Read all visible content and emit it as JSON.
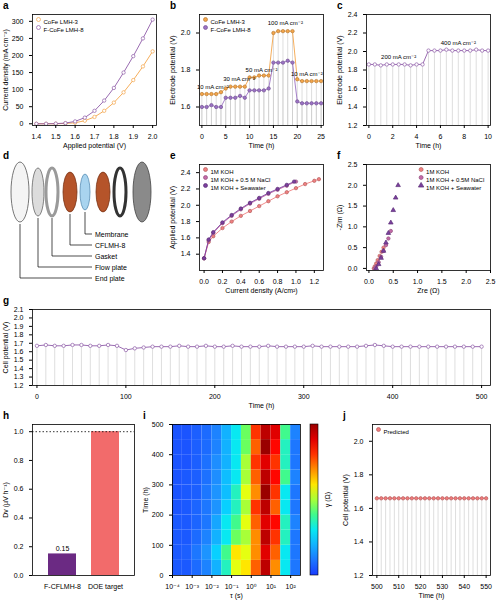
{
  "chart_data": [
    {
      "panel": "a",
      "type": "line",
      "xlabel": "Applied potential (V)",
      "ylabel": "Current density (mA cm⁻²)",
      "x": [
        1.4,
        1.45,
        1.5,
        1.55,
        1.6,
        1.65,
        1.7,
        1.75,
        1.8,
        1.85,
        1.9,
        1.95,
        2.0
      ],
      "xlim": [
        1.38,
        2.02
      ],
      "xticks": [
        1.4,
        1.5,
        1.6,
        1.7,
        1.8,
        1.9,
        {
          "value": 2,
          "label": "2.0"
        }
      ],
      "ylim": [
        -5,
        320
      ],
      "yticks": [
        0,
        50,
        100,
        150,
        200,
        250,
        300
      ],
      "legend": "top-left",
      "series": [
        {
          "name": "CoFe LMH-3",
          "color": "#f4a54a",
          "marker": "open_circle",
          "values": [
            0,
            0,
            0,
            1,
            3,
            9,
            20,
            38,
            62,
            92,
            128,
            168,
            212
          ]
        },
        {
          "name": "F-CoFe LMH-8",
          "color": "#8e5ba8",
          "marker": "open_circle",
          "values": [
            0,
            0,
            0.5,
            2,
            7,
            18,
            38,
            68,
            105,
            150,
            198,
            250,
            305
          ]
        }
      ]
    },
    {
      "panel": "b",
      "type": "line",
      "xlabel": "Time (h)",
      "ylabel": "Electrode potential (V)",
      "x": [
        0,
        1,
        2,
        3,
        4,
        5,
        6,
        7,
        8,
        9,
        10,
        11,
        12,
        13,
        14,
        15,
        16,
        17,
        18,
        19,
        20,
        21,
        22,
        23,
        24,
        25
      ],
      "xlim": [
        -0.5,
        25.5
      ],
      "xticks": [
        0,
        5,
        10,
        15,
        20,
        25
      ],
      "ylim": [
        1.5,
        2.1
      ],
      "yticks": [
        1.6,
        1.8,
        {
          "value": 2,
          "label": "2.0"
        }
      ],
      "legend": "top-left",
      "line_style": "drop",
      "series": [
        {
          "name": "CoFe LMH-3",
          "color": "#f4a54a",
          "marker": "circle",
          "values": [
            1.67,
            1.67,
            1.67,
            1.67,
            1.68,
            1.7,
            1.71,
            1.71,
            1.71,
            1.71,
            1.76,
            1.76,
            1.77,
            1.77,
            1.77,
            2.0,
            2.01,
            2.01,
            2.01,
            2.01,
            1.75,
            1.74,
            1.74,
            1.74,
            1.74,
            1.74
          ]
        },
        {
          "name": "F-CoFe LMH-8",
          "color": "#9b72c4",
          "marker": "circle",
          "values": [
            1.6,
            1.6,
            1.61,
            1.6,
            1.6,
            1.65,
            1.65,
            1.65,
            1.66,
            1.65,
            1.69,
            1.69,
            1.69,
            1.69,
            1.7,
            1.84,
            1.84,
            1.84,
            1.85,
            1.84,
            1.63,
            1.62,
            1.62,
            1.62,
            1.62,
            1.62
          ]
        }
      ],
      "annotations": [
        {
          "text": "10 mA cm⁻²",
          "x": 2.3,
          "y": 1.71
        },
        {
          "text": "30 mA cm⁻²",
          "x": 7.8,
          "y": 1.75
        },
        {
          "text": "50 mA cm⁻²",
          "x": 12.5,
          "y": 1.8
        },
        {
          "text": "100 mA cm⁻²",
          "x": 17.5,
          "y": 2.055
        },
        {
          "text": "10 mA cm⁻²",
          "x": 22.0,
          "y": 1.78
        }
      ]
    },
    {
      "panel": "c",
      "type": "line",
      "xlabel": "Time (h)",
      "ylabel": "Electrode potential (V)",
      "x": [
        0,
        0.5,
        1,
        1.5,
        2,
        2.5,
        3,
        3.5,
        4,
        4.5,
        5,
        5.5,
        6,
        6.5,
        7,
        7.5,
        8,
        8.5,
        9,
        9.5,
        10
      ],
      "xlim": [
        -0.2,
        10.2
      ],
      "xticks": [
        0,
        2,
        4,
        6,
        8,
        10
      ],
      "ylim": [
        1.2,
        2.4
      ],
      "yticks": [
        1.2,
        1.4,
        1.6,
        1.8,
        {
          "value": 2,
          "label": "2.0"
        },
        2.2,
        2.4
      ],
      "line_style": "drop",
      "series": [
        {
          "color": "#8e5ba8",
          "marker": "open_circle",
          "values": [
            1.86,
            1.86,
            1.85,
            1.86,
            1.86,
            1.86,
            1.86,
            1.85,
            1.86,
            1.86,
            2.01,
            2.01,
            2.01,
            2.02,
            2.01,
            2.01,
            2.01,
            2.01,
            2.02,
            2.01,
            2.01
          ]
        }
      ],
      "annotations": [
        {
          "text": "200 mA cm⁻²",
          "x": 2.5,
          "y": 1.94
        },
        {
          "text": "400 mA cm⁻²",
          "x": 7.5,
          "y": 2.09
        }
      ]
    },
    {
      "panel": "d",
      "type": "diagram",
      "labels": [
        "Membrane",
        "CFLMH-8",
        "Gasket",
        "Flow plate",
        "End plate"
      ]
    },
    {
      "panel": "e",
      "type": "line",
      "xlabel": "Current density (A/cm²)",
      "ylabel": "Applied potential (V)",
      "xlim": [
        -0.05,
        1.3
      ],
      "xticks": [
        {
          "value": 0,
          "label": "0.0"
        },
        0.2,
        0.4,
        0.6,
        0.8,
        {
          "value": 1,
          "label": "1.0"
        },
        1.2
      ],
      "ylim": [
        1.2,
        2.5
      ],
      "yticks": [
        1.4,
        1.6,
        1.8,
        {
          "value": 2,
          "label": "2.0"
        },
        2.2,
        2.4
      ],
      "legend": "top-left",
      "series": [
        {
          "name": "1M KOH",
          "color": "#f08080",
          "marker": "circle",
          "x": [
            0,
            0.05,
            0.1,
            0.2,
            0.3,
            0.4,
            0.5,
            0.6,
            0.7,
            0.8,
            0.9,
            1.0,
            1.1,
            1.2,
            1.25
          ],
          "values": [
            1.35,
            1.55,
            1.62,
            1.72,
            1.8,
            1.87,
            1.93,
            1.99,
            2.05,
            2.11,
            2.16,
            2.21,
            2.26,
            2.3,
            2.32
          ]
        },
        {
          "name": "1M KOH + 0.5 M NaCl",
          "color": "#c46aa8",
          "marker": "circle",
          "x": [
            0,
            0.05,
            0.1,
            0.2,
            0.3,
            0.4,
            0.5,
            0.6,
            0.7,
            0.8,
            0.9,
            1.0
          ],
          "values": [
            1.35,
            1.57,
            1.66,
            1.78,
            1.87,
            1.95,
            2.02,
            2.08,
            2.14,
            2.19,
            2.24,
            2.29
          ]
        },
        {
          "name": "1M KOH + Seawater",
          "color": "#7b3f9e",
          "marker": "circle",
          "x": [
            0,
            0.05,
            0.1,
            0.2,
            0.3,
            0.4,
            0.5,
            0.6,
            0.7,
            0.8,
            0.9,
            0.98
          ],
          "values": [
            1.35,
            1.58,
            1.67,
            1.79,
            1.88,
            1.96,
            2.03,
            2.09,
            2.15,
            2.2,
            2.25,
            2.29
          ]
        }
      ]
    },
    {
      "panel": "f",
      "type": "scatter",
      "xlabel": "Zre (Ω)",
      "ylabel": "-Zim (Ω)",
      "xlim": [
        -0.05,
        2.5
      ],
      "xticks": [
        {
          "value": 0,
          "label": "0.0"
        },
        0.5,
        {
          "value": 1,
          "label": "1.0"
        },
        1.5,
        {
          "value": 2,
          "label": "2.0"
        },
        2.5
      ],
      "ylim": [
        -0.05,
        2.5
      ],
      "yticks": [
        {
          "value": 0,
          "label": "0.0"
        },
        0.5,
        {
          "value": 1,
          "label": "1.0"
        },
        1.5,
        {
          "value": 2,
          "label": "2.0"
        },
        2.5
      ],
      "legend": "top-right",
      "series": [
        {
          "name": "1M KOH",
          "color": "#f08080",
          "marker": "circle",
          "x": [
            0.1,
            0.12,
            0.15,
            0.18,
            0.22,
            0.26,
            0.3
          ],
          "values": [
            0,
            0.05,
            0.12,
            0.2,
            0.3,
            0.4,
            0.5
          ]
        },
        {
          "name": "1M KOH + 0.5M NaCl",
          "color": "#c46aa8",
          "marker": "circle",
          "x": [
            0.12,
            0.15,
            0.2,
            0.25,
            0.3,
            0.35,
            0.4,
            0.45
          ],
          "values": [
            0,
            0.05,
            0.15,
            0.28,
            0.42,
            0.56,
            0.72,
            0.9
          ]
        },
        {
          "name": "1M KOH + Seawater",
          "color": "#7b3f9e",
          "marker": "triangle",
          "x": [
            0.15,
            0.2,
            0.25,
            0.3,
            0.35,
            0.4,
            0.45,
            0.5,
            0.55,
            0.6
          ],
          "values": [
            0,
            0.1,
            0.25,
            0.42,
            0.62,
            0.85,
            1.1,
            1.4,
            1.7,
            2.0
          ]
        }
      ]
    },
    {
      "panel": "g",
      "type": "line",
      "xlabel": "Time (h)",
      "ylabel": "Cell potential (V)",
      "x": [
        0,
        10,
        20,
        30,
        40,
        50,
        60,
        70,
        80,
        90,
        100,
        110,
        120,
        130,
        140,
        150,
        160,
        170,
        180,
        190,
        200,
        210,
        220,
        230,
        240,
        250,
        260,
        270,
        280,
        290,
        300,
        310,
        320,
        330,
        340,
        350,
        360,
        370,
        380,
        390,
        400,
        410,
        420,
        430,
        440,
        450,
        460,
        470,
        480,
        490,
        500
      ],
      "xlim": [
        -5,
        510
      ],
      "xticks": [
        0,
        100,
        200,
        300,
        400,
        500
      ],
      "ylim": [
        1.2,
        2.1
      ],
      "yticks": [
        1.2,
        1.3,
        1.4,
        1.5,
        1.6,
        1.7,
        1.8,
        1.9,
        {
          "value": 2,
          "label": "2.0"
        },
        2.1
      ],
      "line_style": "drop",
      "series": [
        {
          "color": "#8e5ba8",
          "marker": "open_circle",
          "values": [
            1.67,
            1.68,
            1.67,
            1.67,
            1.68,
            1.68,
            1.67,
            1.67,
            1.68,
            1.67,
            1.62,
            1.64,
            1.65,
            1.66,
            1.66,
            1.66,
            1.67,
            1.66,
            1.66,
            1.67,
            1.66,
            1.66,
            1.67,
            1.66,
            1.66,
            1.66,
            1.67,
            1.66,
            1.66,
            1.66,
            1.66,
            1.67,
            1.66,
            1.66,
            1.66,
            1.66,
            1.66,
            1.67,
            1.68,
            1.67,
            1.66,
            1.66,
            1.66,
            1.66,
            1.66,
            1.66,
            1.66,
            1.66,
            1.66,
            1.66,
            1.66
          ]
        }
      ]
    },
    {
      "panel": "h",
      "type": "bar",
      "ylabel": "Dv (µV h⁻¹)",
      "categories": [
        "F-CFLMH-8",
        "DOE target"
      ],
      "values": [
        0.15,
        1.0
      ],
      "colors": [
        "#6b2a83",
        "#f26b6b"
      ],
      "data_labels": true,
      "value_labels": [
        "0.15",
        null
      ],
      "reference": 1.0,
      "ylim": [
        0,
        1.05
      ],
      "yticks": [
        {
          "value": 0,
          "label": "0.0"
        },
        0.2,
        0.4,
        0.6,
        0.8,
        {
          "value": 1,
          "label": "1.0"
        }
      ]
    },
    {
      "panel": "i",
      "type": "heatmap",
      "xlabel": "τ (s)",
      "ylabel": "Time (h)",
      "log": "x",
      "colorbar_label": "γ (Ω)",
      "xlim": [
        0.0001,
        316
      ],
      "xticks": [
        {
          "value": 0.0001,
          "label": "10⁻⁴"
        },
        {
          "value": 0.001,
          "label": "10⁻³"
        },
        {
          "value": 0.01,
          "label": "10⁻²"
        },
        {
          "value": 0.1,
          "label": "10⁻¹"
        },
        {
          "value": 1,
          "label": "10⁰"
        },
        {
          "value": 10,
          "label": "10¹"
        },
        {
          "value": 100,
          "label": "10²"
        }
      ],
      "ylim": [
        0,
        500
      ],
      "yticks": [
        0,
        100,
        200,
        300,
        400,
        500
      ],
      "zlim": [
        0,
        1
      ],
      "x_edges": [
        0.0001,
        0.000316,
        0.001,
        0.00316,
        0.01,
        0.0316,
        0.1,
        0.316,
        1,
        3.16,
        10,
        31.6,
        100,
        316
      ],
      "y_edges": [
        0,
        50,
        100,
        150,
        200,
        250,
        300,
        350,
        400,
        450,
        500
      ],
      "cells": [
        [
          0.05,
          0.05,
          0.08,
          0.12,
          0.2,
          0.35,
          0.55,
          0.6,
          0.75,
          0.95,
          0.7,
          0.3,
          0.1
        ],
        [
          0.05,
          0.06,
          0.1,
          0.15,
          0.25,
          0.4,
          0.6,
          0.55,
          0.7,
          0.9,
          0.75,
          0.3,
          0.1
        ],
        [
          0.05,
          0.05,
          0.08,
          0.12,
          0.2,
          0.3,
          0.45,
          0.5,
          0.7,
          0.95,
          0.8,
          0.35,
          0.1
        ],
        [
          0.05,
          0.05,
          0.07,
          0.1,
          0.18,
          0.3,
          0.4,
          0.55,
          0.75,
          0.9,
          0.85,
          0.35,
          0.12
        ],
        [
          0.04,
          0.05,
          0.07,
          0.1,
          0.15,
          0.25,
          0.35,
          0.5,
          0.8,
          0.95,
          0.75,
          0.3,
          0.1
        ],
        [
          0.04,
          0.05,
          0.06,
          0.1,
          0.15,
          0.22,
          0.35,
          0.55,
          0.7,
          1.0,
          0.8,
          0.3,
          0.1
        ],
        [
          0.04,
          0.05,
          0.06,
          0.09,
          0.14,
          0.22,
          0.3,
          0.5,
          0.75,
          0.95,
          0.85,
          0.4,
          0.12
        ],
        [
          0.04,
          0.04,
          0.06,
          0.09,
          0.14,
          0.2,
          0.3,
          0.5,
          0.8,
          0.9,
          0.8,
          0.35,
          0.1
        ],
        [
          0.04,
          0.04,
          0.06,
          0.08,
          0.12,
          0.2,
          0.3,
          0.45,
          0.75,
          1.0,
          0.85,
          0.35,
          0.1
        ],
        [
          0.04,
          0.04,
          0.06,
          0.08,
          0.12,
          0.2,
          0.3,
          0.45,
          0.8,
          0.95,
          0.9,
          0.4,
          0.12
        ]
      ]
    },
    {
      "panel": "j",
      "type": "line",
      "xlabel": "Time (h)",
      "ylabel": "Cell potential (V)",
      "x": [
        500,
        502,
        504,
        506,
        508,
        510,
        512,
        514,
        516,
        518,
        520,
        522,
        524,
        526,
        528,
        530,
        532,
        534,
        536,
        538,
        540,
        542,
        544,
        546,
        548,
        550
      ],
      "xlim": [
        498,
        552
      ],
      "xticks": [
        500,
        510,
        520,
        530,
        540,
        550
      ],
      "ylim": [
        1.2,
        2.1
      ],
      "yticks": [
        1.2,
        1.4,
        1.6,
        1.8,
        {
          "value": 2,
          "label": "2.0"
        }
      ],
      "legend": "top-left",
      "line_style": "drop",
      "series": [
        {
          "name": "Predicted",
          "color": "#f07c7c",
          "marker": "circle",
          "values": [
            1.66,
            1.66,
            1.66,
            1.66,
            1.66,
            1.66,
            1.66,
            1.66,
            1.66,
            1.66,
            1.66,
            1.66,
            1.66,
            1.66,
            1.66,
            1.66,
            1.66,
            1.66,
            1.66,
            1.66,
            1.66,
            1.66,
            1.66,
            1.66,
            1.66,
            1.66
          ]
        }
      ]
    }
  ]
}
